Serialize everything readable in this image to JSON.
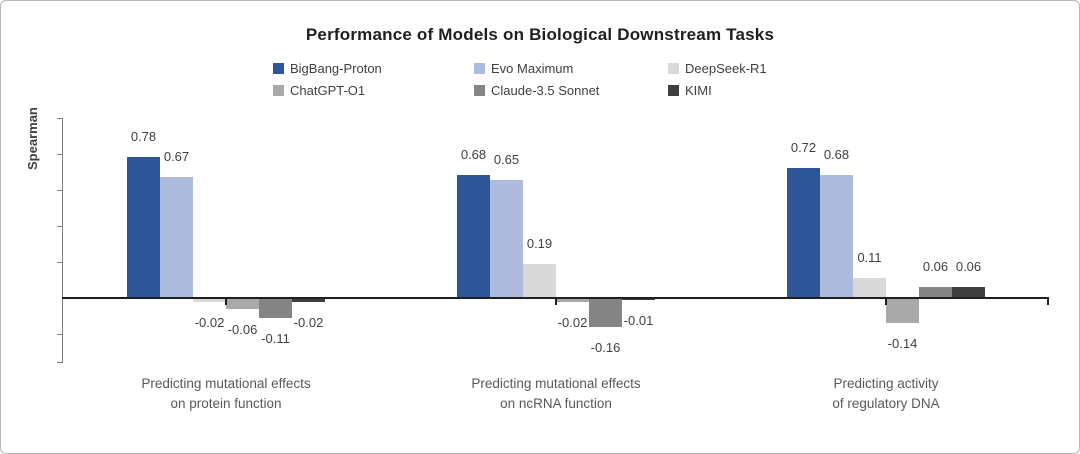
{
  "chart_data": {
    "type": "bar",
    "title": "Performance of Models on Biological Downstream Tasks",
    "ylabel": "Spearman",
    "xlabel": "",
    "categories": [
      "Predicting mutational effects\non protein function",
      "Predicting mutational effects\non ncRNA function",
      "Predicting activity\nof regulatory DNA"
    ],
    "series": [
      {
        "name": "BigBang-Proton",
        "color": "#2E5597",
        "values": [
          0.78,
          0.68,
          0.72
        ]
      },
      {
        "name": "Evo Maximum",
        "color": "#AEBBDD",
        "values": [
          0.67,
          0.65,
          0.68
        ]
      },
      {
        "name": "DeepSeek-R1",
        "color": "#D9D9D9",
        "values": [
          -0.02,
          0.19,
          0.11
        ]
      },
      {
        "name": "ChatGPT-O1",
        "color": "#A9A9A9",
        "values": [
          -0.06,
          -0.02,
          -0.14
        ]
      },
      {
        "name": "Claude-3.5 Sonnet",
        "color": "#848484",
        "values": [
          -0.11,
          -0.16,
          0.06
        ]
      },
      {
        "name": "KIMI",
        "color": "#3F3F3F",
        "values": [
          -0.02,
          -0.01,
          0.06
        ]
      }
    ],
    "ylim": [
      -0.36,
      1.0
    ],
    "y_tick_interval": 0.2,
    "y_tick_labels_visible": false,
    "grid": false,
    "legend_position": "top-center",
    "value_label_format": "0.00",
    "axis_color": "#1f1f1f"
  }
}
